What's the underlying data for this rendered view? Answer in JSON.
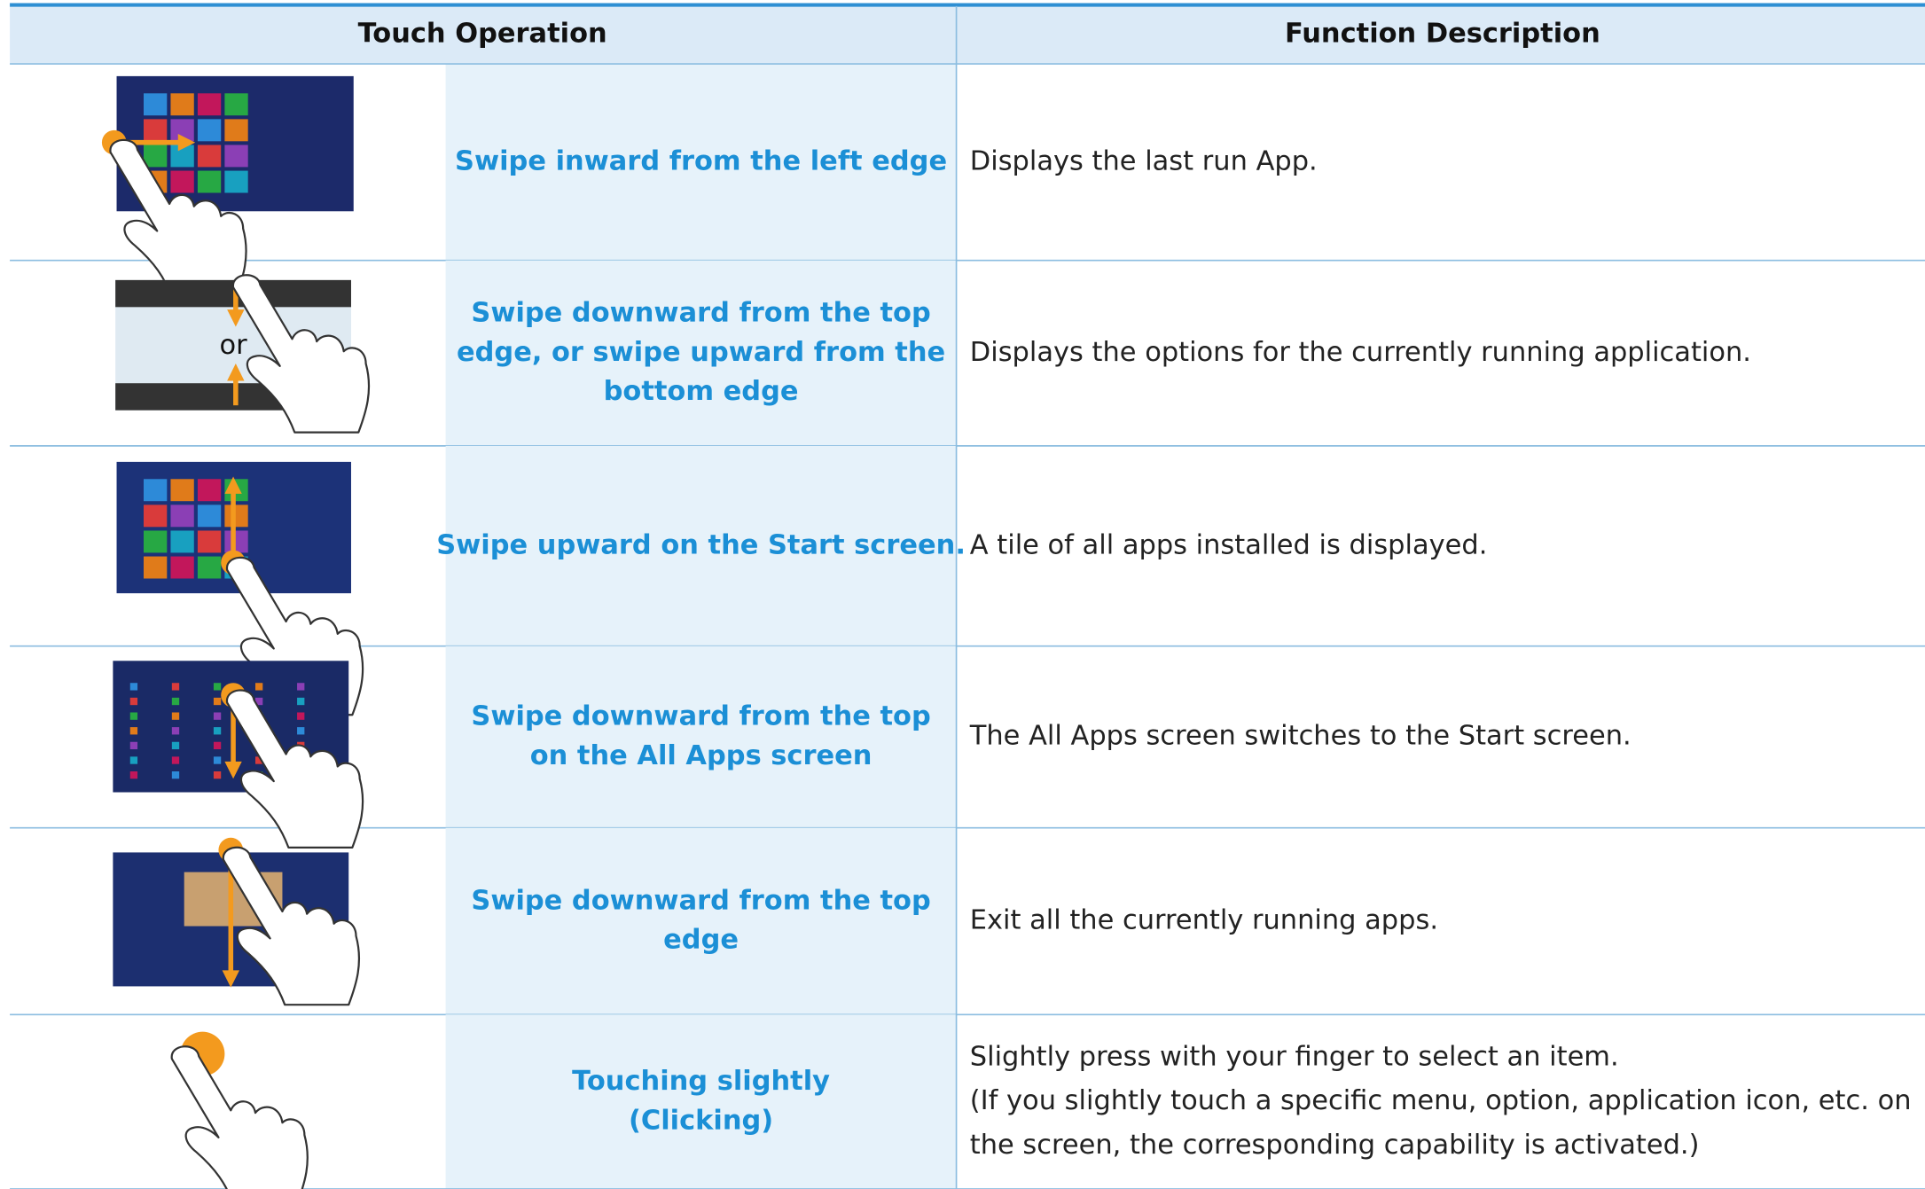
{
  "table": {
    "headers": [
      "Touch Operation",
      "Function Description"
    ],
    "rows": [
      {
        "operation": [
          "Swipe inward from the left edge"
        ],
        "description": [
          "Displays the last run App."
        ]
      },
      {
        "illustration_label": "or",
        "operation": [
          "Swipe downward from the top",
          "edge, or swipe upward from the",
          "bottom edge"
        ],
        "description": [
          "Displays the options for the currently running application."
        ]
      },
      {
        "operation": [
          "Swipe upward on the Start screen."
        ],
        "description": [
          "A tile of all apps installed is displayed."
        ]
      },
      {
        "operation": [
          "Swipe downward from the top",
          "on the All Apps screen"
        ],
        "description": [
          "The All Apps screen switches to the Start screen."
        ]
      },
      {
        "operation": [
          "Swipe downward from the top",
          "edge"
        ],
        "description": [
          "Exit all the currently running apps."
        ]
      },
      {
        "operation": [
          "Touching slightly",
          "(Clicking)"
        ],
        "description": [
          "Slightly press with your finger to select an item.",
          "(If you slightly touch a specific menu, option, application icon, etc. on",
          "the screen, the corresponding capability is activated.)"
        ]
      }
    ]
  }
}
